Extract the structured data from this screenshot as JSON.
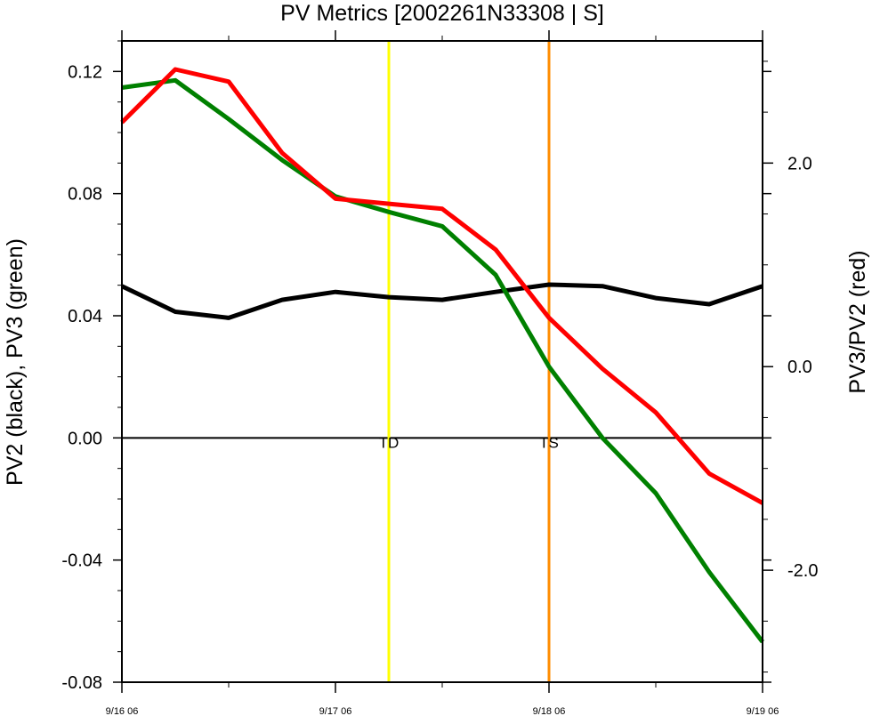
{
  "chart_data": {
    "type": "line",
    "title": "PV Metrics [2002261N33308 | S]",
    "ylabel": "PV2 (black), PV3 (green)",
    "y2label": "PV3/PV2 (red)",
    "x_tick_labels": [
      "9/16 06",
      "9/17 06",
      "9/18 06",
      "9/19 06"
    ],
    "x_ticks_days": [
      0,
      1,
      2,
      3
    ],
    "xlim_days": [
      0,
      3
    ],
    "ylim": [
      -0.08,
      0.13
    ],
    "y_ticks": [
      -0.08,
      -0.04,
      0.0,
      0.04,
      0.08,
      0.12
    ],
    "y_tick_labels": [
      "-0.08",
      "-0.04",
      "0.00",
      "0.04",
      "0.08",
      "0.12"
    ],
    "y2lim": [
      -3.1,
      3.2
    ],
    "y2_ticks": [
      -2.0,
      0.0,
      2.0
    ],
    "y2_tick_labels": [
      "-2.0",
      "0.0",
      "2.0"
    ],
    "grid": false,
    "x_days": [
      0,
      0.25,
      0.5,
      0.75,
      1.0,
      1.25,
      1.5,
      1.75,
      2.0,
      2.25,
      2.5,
      2.75,
      3.0
    ],
    "series": [
      {
        "axis": "left",
        "color": "#000000",
        "values": [
          0.0497,
          0.0413,
          0.0393,
          0.0452,
          0.0478,
          0.0461,
          0.0452,
          0.0478,
          0.0502,
          0.0497,
          0.0458,
          0.0438,
          0.0497
        ]
      },
      {
        "axis": "left",
        "color": "#008000",
        "values": [
          0.1147,
          0.1171,
          0.1044,
          0.091,
          0.0791,
          0.074,
          0.0693,
          0.0534,
          0.0233,
          0.0,
          -0.0181,
          -0.0439,
          -0.0668
        ]
      },
      {
        "axis": "right",
        "color": "#ff0000",
        "values": [
          2.4,
          2.92,
          2.8,
          2.1,
          1.65,
          1.6,
          1.55,
          1.15,
          0.48,
          -0.02,
          -0.45,
          -1.05,
          -1.34
        ]
      }
    ],
    "zero_line": {
      "y": 0.0,
      "color": "#000000"
    },
    "markers": [
      {
        "x_days": 1.25,
        "label": "TD",
        "color": "#ffff00"
      },
      {
        "x_days": 2.0,
        "label": "TS",
        "color": "#ff8c00"
      }
    ]
  }
}
